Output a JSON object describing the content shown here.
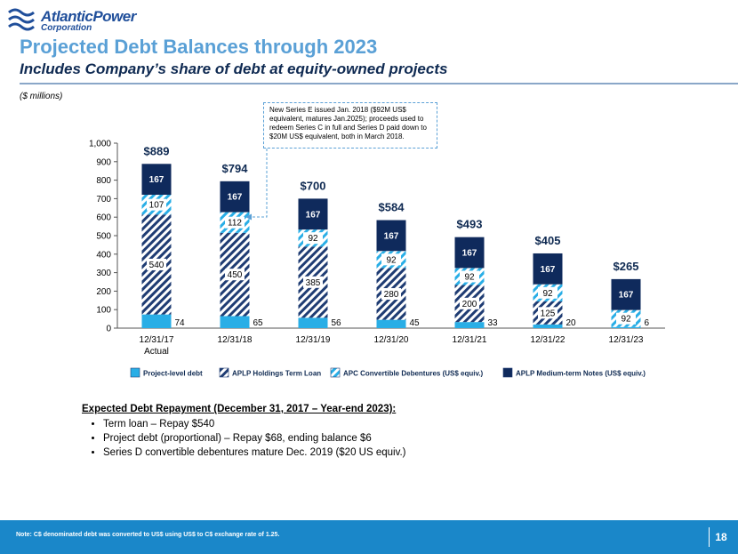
{
  "header": {
    "logo_line1": "AtlanticPower",
    "logo_line2": "Corporation",
    "title": "Projected Debt Balances through 2023",
    "subtitle": "Includes Company’s share of debt at equity-owned projects",
    "units": "($ millions)"
  },
  "callout": {
    "text": "New Series E issued Jan. 2018 ($92M US$ equivalent, matures Jan.2025); proceeds used to redeem Series C in full and Series D paid down to $20M US$ equivalent, both in March 2018."
  },
  "chart_data": {
    "type": "bar",
    "stacked": true,
    "categories": [
      "12/31/17",
      "12/31/18",
      "12/31/19",
      "12/31/20",
      "12/31/21",
      "12/31/22",
      "12/31/23"
    ],
    "category_sublabels": [
      "Actual",
      "",
      "",
      "",
      "",
      "",
      ""
    ],
    "ylim": [
      0,
      1000
    ],
    "yticks": [
      0,
      100,
      200,
      300,
      400,
      500,
      600,
      700,
      800,
      900,
      1000
    ],
    "ytick_labels": [
      "0",
      "100",
      "200",
      "300",
      "400",
      "500",
      "600",
      "700",
      "800",
      "900",
      "1,000"
    ],
    "totals": [
      "$889",
      "$794",
      "$700",
      "$584",
      "$493",
      "$405",
      "$265"
    ],
    "series": [
      {
        "name": "Project-level debt",
        "values": [
          74,
          65,
          56,
          45,
          33,
          20,
          6
        ],
        "color": "#29aee6",
        "pattern": "solid"
      },
      {
        "name": "APLP Holdings Term Loan",
        "values": [
          540,
          450,
          385,
          280,
          200,
          125,
          0
        ],
        "color": "#1f3c73",
        "pattern": "hatch"
      },
      {
        "name": "APC Convertible Debentures (US$ equiv.)",
        "values": [
          107,
          112,
          92,
          92,
          92,
          92,
          92
        ],
        "color": "#29aee6",
        "pattern": "hatch"
      },
      {
        "name": "APLP Medium-term Notes (US$ equiv.)",
        "values": [
          167,
          167,
          167,
          167,
          167,
          167,
          167
        ],
        "color": "#0f2a5c",
        "pattern": "solid"
      }
    ],
    "legend_position": "bottom",
    "grid": false
  },
  "repayment": {
    "title": "Expected Debt Repayment (December 31, 2017 – Year-end 2023):",
    "items": [
      "Term loan – Repay $540",
      "Project debt (proportional) – Repay $68, ending balance $6",
      "Series D convertible debentures mature Dec. 2019 ($20 US equiv.)"
    ]
  },
  "footer": {
    "note": "Note: C$ denominated debt was converted to US$ using US$ to C$ exchange rate of 1.25.",
    "page_number": "18"
  }
}
